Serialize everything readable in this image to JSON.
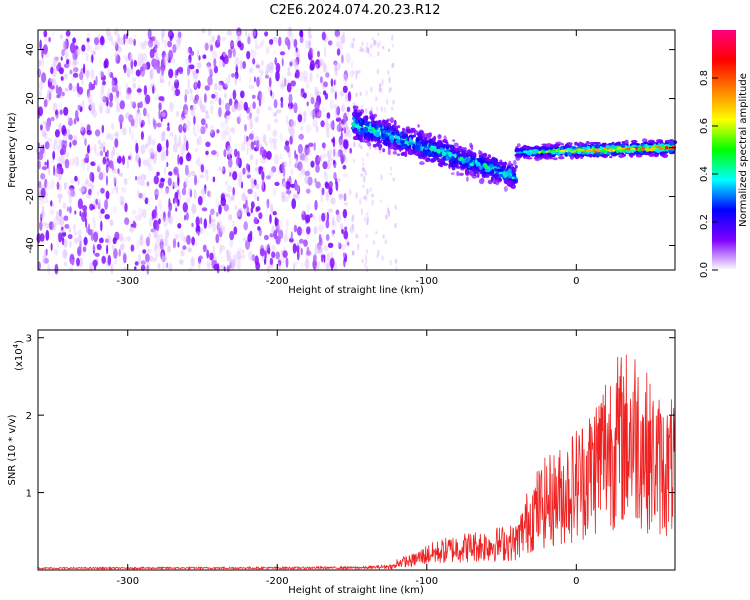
{
  "title": "C2E6.2024.074.20.23.R12",
  "chart_data": [
    {
      "type": "heatmap",
      "xlabel": "Height of straight line (km)",
      "ylabel": "Frequency (Hz)",
      "xlim": [
        -360,
        66
      ],
      "ylim": [
        -50,
        48
      ],
      "x_ticks": [
        -300,
        -200,
        -100,
        0
      ],
      "x_tick_labels": [
        "-300",
        "-200",
        "-100",
        "0"
      ],
      "y_ticks": [
        -40,
        -20,
        0,
        20,
        40
      ],
      "y_tick_labels": [
        "-40",
        "-20",
        "0",
        "20",
        "40"
      ],
      "grid": false,
      "colorbar": {
        "label": "Normalized spectral amplitude",
        "range": [
          0,
          1
        ],
        "ticks": [
          0.0,
          0.2,
          0.4,
          0.6,
          0.8
        ],
        "tick_labels": [
          "0.0",
          "0.2",
          "0.4",
          "0.6",
          "0.8"
        ],
        "colormap": [
          "#ffffff",
          "#7f00ff",
          "#0000ff",
          "#00ffff",
          "#00ff00",
          "#ffff00",
          "#ff8000",
          "#ff0000",
          "#ff0080"
        ]
      },
      "regions": [
        {
          "x_range": [
            -360,
            -150
          ],
          "freq_range": [
            -50,
            48
          ],
          "amplitude": 0.1,
          "note": "broadband noise"
        },
        {
          "x_range": [
            -150,
            -40
          ],
          "freq_center": [
            10,
            -12
          ],
          "amplitude_max": 0.45
        },
        {
          "x_range": [
            -40,
            66
          ],
          "freq_center": [
            -2,
            0
          ],
          "amplitude_max": 0.9
        }
      ]
    },
    {
      "type": "line",
      "xlabel": "Height of straight line (km)",
      "ylabel": "SNR (10 * v/v)",
      "y_multiplier_label": "(x10",
      "y_multiplier_exp": "4",
      "y_multiplier_close": ")",
      "xlim": [
        -360,
        66
      ],
      "ylim": [
        0,
        3.1
      ],
      "x_ticks": [
        -300,
        -200,
        -100,
        0
      ],
      "x_tick_labels": [
        "-300",
        "-200",
        "-100",
        "0"
      ],
      "y_ticks": [
        1,
        2,
        3
      ],
      "y_tick_labels": [
        "1",
        "2",
        "3"
      ],
      "grid": false,
      "series": [
        {
          "color": "#ee2222",
          "envelope": [
            [
              -360,
              0.03
            ],
            [
              -200,
              0.04
            ],
            [
              -140,
              0.05
            ],
            [
              -110,
              0.15
            ],
            [
              -100,
              0.25
            ],
            [
              -80,
              0.35
            ],
            [
              -60,
              0.4
            ],
            [
              -40,
              0.45
            ],
            [
              -30,
              0.9
            ],
            [
              -20,
              1.1
            ],
            [
              -10,
              1.2
            ],
            [
              0,
              1.4
            ],
            [
              10,
              1.6
            ],
            [
              20,
              2.0
            ],
            [
              30,
              2.1
            ],
            [
              40,
              2.2
            ],
            [
              50,
              1.8
            ],
            [
              60,
              1.6
            ],
            [
              66,
              1.7
            ]
          ]
        }
      ]
    }
  ]
}
